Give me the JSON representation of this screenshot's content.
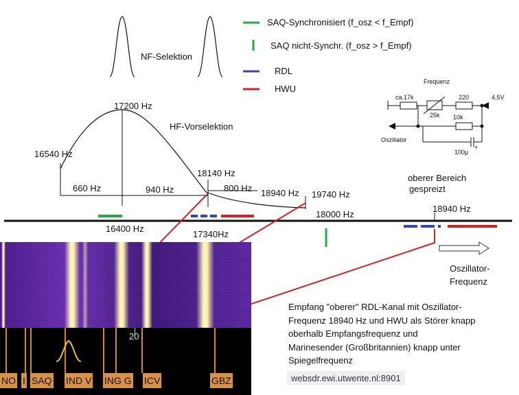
{
  "legend": {
    "saq_sync": "SAQ-Synchronisiert (f_osz < f_Empf)",
    "saq_nosync": "SAQ nicht-Synchr. (f_osz > f_Empf)",
    "rdl": "RDL",
    "hwu": "HWU"
  },
  "colors": {
    "green": "#22aa44",
    "blue": "#3344bb",
    "red": "#d42020",
    "orange": "#d9914a"
  },
  "labels": {
    "nf_selektion": "NF-Selektion",
    "hf_vorselektion": "HF-Vorselektion",
    "f17200": "17200 Hz",
    "f16540": "16540 Hz",
    "f18140": "18140 Hz",
    "f660": "660 Hz",
    "f940": "940 Hz",
    "f800": "800 Hz",
    "f18940a": "18940 Hz",
    "f19740": "19740 Hz",
    "f18000": "18000 Hz",
    "f16400": "16400 Hz",
    "f17340": "17340Hz",
    "oberer1": "oberer Bereich",
    "oberer2": "gespreizt",
    "f18940b": "18940 Hz",
    "osz1": "Oszillator-",
    "osz2": "Frequenz"
  },
  "schematic": {
    "frequenz": "Frequenz",
    "r17k": "ca.17k",
    "r220": "220",
    "r25k": "25k",
    "r10k": "10k",
    "v45": "4,5V",
    "oszillator": "Oszillator",
    "c100": "100µ",
    "plus": "+"
  },
  "caption": [
    "Empfang \"oberer\" RDL-Kanal mit Oszillator-",
    "Frequenz 18940 Hz und HWU als Störer knapp",
    "oberhalb Empfangsfrequenz und",
    "Marinesender (Großbritannien) knapp unter",
    "Spiegelfrequenz"
  ],
  "url": "websdr.ewi.utwente.nl:8901",
  "waterfall": {
    "tick": "20",
    "stations": [
      "NO",
      "I",
      "SAQ",
      "IND V",
      "ING G",
      "ICV",
      "GBZ"
    ]
  }
}
